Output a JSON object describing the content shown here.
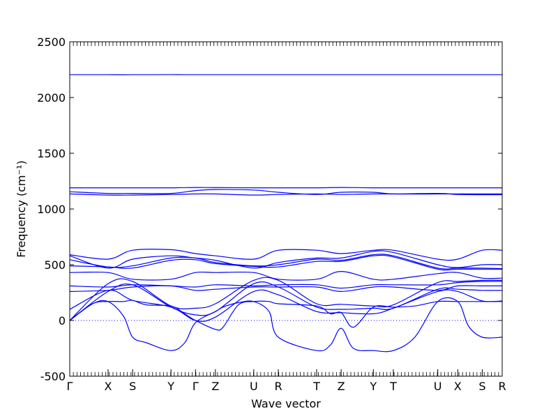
{
  "chart_data": {
    "type": "line",
    "xlabel": "Wave vector",
    "ylabel": "Frequency (cm⁻¹)",
    "ylim": [
      -500,
      2500
    ],
    "y_ticks": [
      -500,
      0,
      500,
      1000,
      1500,
      2000,
      2500
    ],
    "zero_line": true,
    "grid": false,
    "line_color": "#0000ff",
    "high_symmetry_points": [
      {
        "label": "Γ",
        "x": 0.0
      },
      {
        "label": "X",
        "x": 0.5
      },
      {
        "label": "S",
        "x": 0.82
      },
      {
        "label": "Y",
        "x": 1.32
      },
      {
        "label": "Γ",
        "x": 1.64
      },
      {
        "label": "Z",
        "x": 1.9
      },
      {
        "label": "U",
        "x": 2.4
      },
      {
        "label": "R",
        "x": 2.72
      },
      {
        "label": "T",
        "x": 3.22
      },
      {
        "label": "Z",
        "x": 3.54
      },
      {
        "label": "Y",
        "x": 3.96
      },
      {
        "label": "T",
        "x": 4.22
      },
      {
        "label": "U",
        "x": 4.8
      },
      {
        "label": "X",
        "x": 5.06
      },
      {
        "label": "S",
        "x": 5.38
      },
      {
        "label": "R",
        "x": 5.64
      }
    ],
    "xlim": [
      0.0,
      5.64
    ],
    "series": [
      {
        "x": [
          0,
          0.3,
          0.5,
          0.7,
          0.82,
          1.1,
          1.32,
          1.5,
          1.64,
          1.8,
          1.9,
          2.2,
          2.4,
          2.6,
          2.72,
          3.0,
          3.22,
          3.4,
          3.54,
          3.7,
          3.96,
          4.22,
          4.5,
          4.8,
          5.06,
          5.38,
          5.64
        ],
        "values": [
          2205,
          2205,
          2205,
          2204,
          2205,
          2205,
          2206,
          2205,
          2205,
          2205,
          2205,
          2205,
          2205,
          2205,
          2205,
          2205,
          2205,
          2205,
          2205,
          2205,
          2205,
          2205,
          2205,
          2205,
          2205,
          2205,
          2205
        ]
      },
      {
        "x": [
          0,
          0.5,
          0.82,
          1.32,
          1.64,
          1.9,
          2.4,
          2.72,
          3.22,
          3.54,
          3.96,
          4.22,
          4.8,
          5.06,
          5.38,
          5.64
        ],
        "values": [
          1190,
          1190,
          1190,
          1190,
          1193,
          1192,
          1190,
          1190,
          1190,
          1193,
          1190,
          1190,
          1190,
          1190,
          1190,
          1190
        ]
      },
      {
        "x": [
          0,
          0.5,
          0.82,
          1.32,
          1.64,
          1.9,
          2.4,
          2.72,
          3.22,
          3.54,
          3.96,
          4.22,
          4.8,
          5.06,
          5.38,
          5.64
        ],
        "values": [
          1155,
          1140,
          1140,
          1140,
          1165,
          1175,
          1170,
          1150,
          1130,
          1150,
          1150,
          1135,
          1135,
          1135,
          1135,
          1135
        ]
      },
      {
        "x": [
          0,
          0.5,
          0.82,
          1.32,
          1.64,
          1.9,
          2.4,
          2.72,
          3.22,
          3.54,
          3.96,
          4.22,
          4.8,
          5.06,
          5.38,
          5.64
        ],
        "values": [
          1135,
          1125,
          1125,
          1130,
          1135,
          1135,
          1125,
          1130,
          1135,
          1130,
          1135,
          1135,
          1140,
          1130,
          1128,
          1128
        ]
      },
      {
        "x": [
          0,
          0.5,
          0.82,
          1.32,
          1.64,
          1.9,
          2.4,
          2.72,
          3.22,
          3.54,
          3.96,
          4.22,
          4.8,
          5.06,
          5.38,
          5.64
        ],
        "values": [
          590,
          550,
          630,
          635,
          600,
          580,
          550,
          630,
          630,
          600,
          630,
          630,
          550,
          550,
          630,
          630
        ]
      },
      {
        "x": [
          0,
          0.5,
          0.82,
          1.32,
          1.64,
          1.9,
          2.4,
          2.72,
          3.22,
          3.54,
          3.96,
          4.22,
          4.8,
          5.06,
          5.38,
          5.64
        ],
        "values": [
          580,
          470,
          550,
          580,
          560,
          540,
          470,
          520,
          560,
          560,
          620,
          610,
          500,
          475,
          500,
          500
        ]
      },
      {
        "x": [
          0,
          0.5,
          0.82,
          1.32,
          1.64,
          1.9,
          2.4,
          2.72,
          3.22,
          3.54,
          3.96,
          4.22,
          4.8,
          5.06,
          5.38,
          5.64
        ],
        "values": [
          545,
          480,
          490,
          560,
          560,
          520,
          490,
          500,
          550,
          540,
          590,
          580,
          470,
          470,
          470,
          465
        ]
      },
      {
        "x": [
          0,
          0.5,
          0.82,
          1.32,
          1.64,
          1.9,
          2.4,
          2.72,
          3.22,
          3.54,
          3.96,
          4.22,
          4.8,
          5.06,
          5.38,
          5.64
        ],
        "values": [
          490,
          480,
          470,
          540,
          545,
          510,
          485,
          480,
          530,
          530,
          580,
          570,
          460,
          460,
          460,
          460
        ]
      },
      {
        "x": [
          0,
          0.5,
          0.82,
          1.32,
          1.64,
          1.9,
          2.4,
          2.72,
          3.22,
          3.54,
          3.96,
          4.22,
          4.8,
          5.06,
          5.38,
          5.64
        ],
        "values": [
          430,
          430,
          370,
          370,
          430,
          430,
          430,
          370,
          370,
          440,
          370,
          370,
          420,
          430,
          380,
          380
        ]
      },
      {
        "x": [
          0,
          0.5,
          0.82,
          1.32,
          1.64,
          1.9,
          2.4,
          2.72,
          3.22,
          3.54,
          3.96,
          4.22,
          4.8,
          5.06,
          5.38,
          5.64
        ],
        "values": [
          310,
          300,
          320,
          310,
          300,
          320,
          310,
          320,
          320,
          290,
          320,
          320,
          320,
          340,
          350,
          350
        ]
      },
      {
        "x": [
          0,
          0.5,
          0.82,
          1.32,
          1.64,
          1.9,
          2.4,
          2.72,
          3.22,
          3.54,
          3.96,
          4.22,
          4.8,
          5.06,
          5.38,
          5.64
        ],
        "values": [
          260,
          270,
          300,
          310,
          270,
          280,
          300,
          300,
          300,
          260,
          300,
          300,
          270,
          310,
          310,
          310
        ]
      },
      {
        "x": [
          0,
          0.5,
          0.82,
          1.32,
          1.64,
          1.9,
          2.4,
          2.72,
          3.22,
          3.54,
          3.96,
          4.22,
          4.8,
          5.06,
          5.38,
          5.64
        ],
        "values": [
          0,
          330,
          350,
          130,
          110,
          150,
          360,
          360,
          150,
          145,
          130,
          140,
          340,
          350,
          360,
          360
        ]
      },
      {
        "x": [
          0,
          0.5,
          0.82,
          1.32,
          1.64,
          1.9,
          2.4,
          2.72,
          3.22,
          3.54,
          3.96,
          4.22,
          4.8,
          5.06,
          5.38,
          5.64
        ],
        "values": [
          0,
          260,
          320,
          120,
          50,
          80,
          330,
          300,
          120,
          100,
          110,
          110,
          280,
          280,
          270,
          270
        ]
      },
      {
        "x": [
          0,
          0.5,
          0.82,
          1.32,
          1.64,
          1.9,
          2.4,
          2.72,
          3.22,
          3.54,
          3.96,
          4.22,
          4.8,
          5.06,
          5.38,
          5.64
        ],
        "values": [
          100,
          270,
          180,
          120,
          0,
          30,
          260,
          230,
          80,
          70,
          60,
          110,
          260,
          260,
          175,
          175
        ]
      },
      {
        "x": [
          0,
          0.3,
          0.5,
          0.7,
          0.82,
          1.0,
          1.32,
          1.5,
          1.64,
          1.9,
          2.0,
          2.2,
          2.4,
          2.6,
          2.72,
          3.22,
          3.4,
          3.54,
          3.7,
          3.96,
          4.22,
          4.5,
          4.8,
          5.06,
          5.2,
          5.38,
          5.64
        ],
        "values": [
          0,
          150,
          170,
          40,
          -150,
          -200,
          -270,
          -200,
          -20,
          80,
          120,
          160,
          170,
          80,
          -150,
          -270,
          -220,
          -70,
          -250,
          -270,
          -270,
          -150,
          170,
          170,
          -50,
          -150,
          -150
        ]
      },
      {
        "x": [
          0,
          0.3,
          0.5,
          0.7,
          0.82,
          1.0,
          1.32,
          1.5,
          1.64,
          1.9,
          2.0,
          2.2,
          2.4,
          2.6,
          2.72,
          3.22,
          3.4,
          3.54,
          3.7,
          3.96,
          4.22,
          4.5,
          4.8,
          5.06,
          5.2,
          5.38,
          5.64
        ],
        "values": [
          0,
          150,
          170,
          170,
          180,
          140,
          130,
          60,
          0,
          -80,
          -60,
          140,
          170,
          170,
          150,
          130,
          60,
          70,
          -60,
          120,
          120,
          130,
          170,
          170,
          170,
          170,
          170
        ]
      }
    ]
  }
}
